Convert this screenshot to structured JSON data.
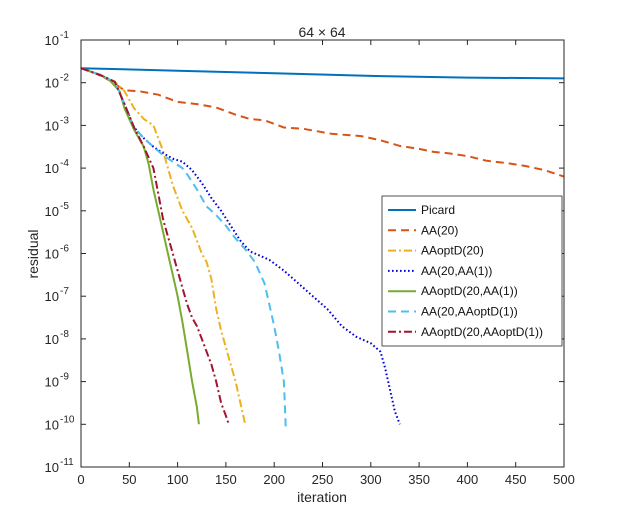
{
  "chart_data": {
    "type": "line",
    "title": "64 × 64",
    "xlabel": "iteration",
    "ylabel": "residual",
    "xlim": [
      0,
      500
    ],
    "ylim_log10": [
      -11,
      -1
    ],
    "xscale": "linear",
    "yscale": "log",
    "grid": false,
    "legend_position": "right-middle",
    "x_ticks": [
      0,
      50,
      100,
      150,
      200,
      250,
      300,
      350,
      400,
      450,
      500
    ],
    "x_tick_labels": [
      "0",
      "50",
      "100",
      "150",
      "200",
      "250",
      "300",
      "350",
      "400",
      "450",
      "500"
    ],
    "y_tick_exponents": [
      -1,
      -2,
      -3,
      -4,
      -5,
      -6,
      -7,
      -8,
      -9,
      -10,
      -11
    ],
    "y_tick_base": "10",
    "series": [
      {
        "name": "Picard",
        "color": "#0072BD",
        "dash": "solid",
        "points": [
          [
            0,
            -1.66
          ],
          [
            100,
            -1.72
          ],
          [
            200,
            -1.78
          ],
          [
            300,
            -1.84
          ],
          [
            400,
            -1.88
          ],
          [
            500,
            -1.9
          ]
        ]
      },
      {
        "name": "AA(20)",
        "color": "#D95319",
        "dash": "dashed",
        "points": [
          [
            0,
            -1.66
          ],
          [
            15,
            -1.78
          ],
          [
            30,
            -1.95
          ],
          [
            40,
            -2.1
          ],
          [
            45,
            -2.18
          ],
          [
            60,
            -2.2
          ],
          [
            80,
            -2.28
          ],
          [
            100,
            -2.45
          ],
          [
            120,
            -2.5
          ],
          [
            140,
            -2.58
          ],
          [
            160,
            -2.75
          ],
          [
            175,
            -2.85
          ],
          [
            190,
            -2.88
          ],
          [
            210,
            -3.05
          ],
          [
            230,
            -3.08
          ],
          [
            260,
            -3.2
          ],
          [
            290,
            -3.25
          ],
          [
            310,
            -3.35
          ],
          [
            330,
            -3.48
          ],
          [
            350,
            -3.55
          ],
          [
            365,
            -3.62
          ],
          [
            380,
            -3.65
          ],
          [
            400,
            -3.72
          ],
          [
            420,
            -3.83
          ],
          [
            440,
            -3.88
          ],
          [
            460,
            -3.95
          ],
          [
            480,
            -4.05
          ],
          [
            500,
            -4.2
          ]
        ]
      },
      {
        "name": "AAoptD(20)",
        "color": "#EDB120",
        "dash": "dashdot",
        "points": [
          [
            0,
            -1.66
          ],
          [
            20,
            -1.82
          ],
          [
            35,
            -1.98
          ],
          [
            45,
            -2.2
          ],
          [
            55,
            -2.6
          ],
          [
            65,
            -2.85
          ],
          [
            75,
            -3.0
          ],
          [
            85,
            -3.6
          ],
          [
            95,
            -4.4
          ],
          [
            105,
            -5.0
          ],
          [
            115,
            -5.4
          ],
          [
            125,
            -6.0
          ],
          [
            130,
            -6.2
          ],
          [
            135,
            -6.6
          ],
          [
            140,
            -7.3
          ],
          [
            145,
            -7.8
          ],
          [
            150,
            -8.2
          ],
          [
            155,
            -8.6
          ],
          [
            160,
            -9.0
          ],
          [
            165,
            -9.5
          ],
          [
            170,
            -10.0
          ]
        ]
      },
      {
        "name": "AA(20,AA(1))",
        "color": "#0000DD",
        "dash": "dotted",
        "points": [
          [
            0,
            -1.66
          ],
          [
            20,
            -1.82
          ],
          [
            35,
            -1.98
          ],
          [
            45,
            -2.5
          ],
          [
            55,
            -3.05
          ],
          [
            65,
            -3.3
          ],
          [
            75,
            -3.5
          ],
          [
            85,
            -3.65
          ],
          [
            95,
            -3.78
          ],
          [
            105,
            -3.85
          ],
          [
            115,
            -4.05
          ],
          [
            125,
            -4.35
          ],
          [
            135,
            -4.7
          ],
          [
            145,
            -5.0
          ],
          [
            155,
            -5.35
          ],
          [
            165,
            -5.7
          ],
          [
            175,
            -5.95
          ],
          [
            185,
            -6.05
          ],
          [
            195,
            -6.15
          ],
          [
            210,
            -6.4
          ],
          [
            225,
            -6.7
          ],
          [
            240,
            -7.0
          ],
          [
            255,
            -7.3
          ],
          [
            270,
            -7.7
          ],
          [
            285,
            -7.95
          ],
          [
            300,
            -8.1
          ],
          [
            310,
            -8.3
          ],
          [
            315,
            -8.7
          ],
          [
            320,
            -9.2
          ],
          [
            325,
            -9.7
          ],
          [
            330,
            -10.0
          ]
        ]
      },
      {
        "name": "AAoptD(20,AA(1))",
        "color": "#77AC30",
        "dash": "solid",
        "points": [
          [
            0,
            -1.66
          ],
          [
            20,
            -1.82
          ],
          [
            30,
            -1.95
          ],
          [
            40,
            -2.2
          ],
          [
            45,
            -2.6
          ],
          [
            55,
            -3.1
          ],
          [
            65,
            -3.5
          ],
          [
            70,
            -3.9
          ],
          [
            75,
            -4.5
          ],
          [
            80,
            -5.0
          ],
          [
            85,
            -5.5
          ],
          [
            90,
            -6.0
          ],
          [
            95,
            -6.5
          ],
          [
            100,
            -7.0
          ],
          [
            105,
            -7.6
          ],
          [
            110,
            -8.3
          ],
          [
            115,
            -9.0
          ],
          [
            120,
            -9.6
          ],
          [
            122,
            -10.0
          ]
        ]
      },
      {
        "name": "AA(20,AAoptD(1))",
        "color": "#4DBEEE",
        "dash": "dashed",
        "points": [
          [
            0,
            -1.66
          ],
          [
            20,
            -1.82
          ],
          [
            35,
            -1.98
          ],
          [
            45,
            -2.5
          ],
          [
            55,
            -3.05
          ],
          [
            65,
            -3.3
          ],
          [
            75,
            -3.5
          ],
          [
            85,
            -3.7
          ],
          [
            95,
            -3.85
          ],
          [
            105,
            -4.0
          ],
          [
            110,
            -4.15
          ],
          [
            120,
            -4.5
          ],
          [
            130,
            -4.9
          ],
          [
            140,
            -5.1
          ],
          [
            150,
            -5.35
          ],
          [
            160,
            -5.65
          ],
          [
            170,
            -5.9
          ],
          [
            180,
            -6.2
          ],
          [
            190,
            -6.7
          ],
          [
            195,
            -7.2
          ],
          [
            200,
            -7.7
          ],
          [
            205,
            -8.3
          ],
          [
            210,
            -9.0
          ],
          [
            212,
            -10.1
          ]
        ]
      },
      {
        "name": "AAoptD(20,AAoptD(1))",
        "color": "#A2142F",
        "dash": "dashdot",
        "points": [
          [
            0,
            -1.66
          ],
          [
            20,
            -1.82
          ],
          [
            35,
            -1.98
          ],
          [
            45,
            -2.5
          ],
          [
            55,
            -3.05
          ],
          [
            65,
            -3.5
          ],
          [
            75,
            -4.0
          ],
          [
            80,
            -4.6
          ],
          [
            85,
            -5.2
          ],
          [
            90,
            -5.6
          ],
          [
            95,
            -6.0
          ],
          [
            100,
            -6.4
          ],
          [
            105,
            -6.8
          ],
          [
            110,
            -7.2
          ],
          [
            115,
            -7.5
          ],
          [
            120,
            -7.7
          ],
          [
            125,
            -8.0
          ],
          [
            130,
            -8.3
          ],
          [
            135,
            -8.6
          ],
          [
            140,
            -9.0
          ],
          [
            145,
            -9.5
          ],
          [
            150,
            -9.8
          ],
          [
            153,
            -10.0
          ]
        ]
      }
    ]
  }
}
